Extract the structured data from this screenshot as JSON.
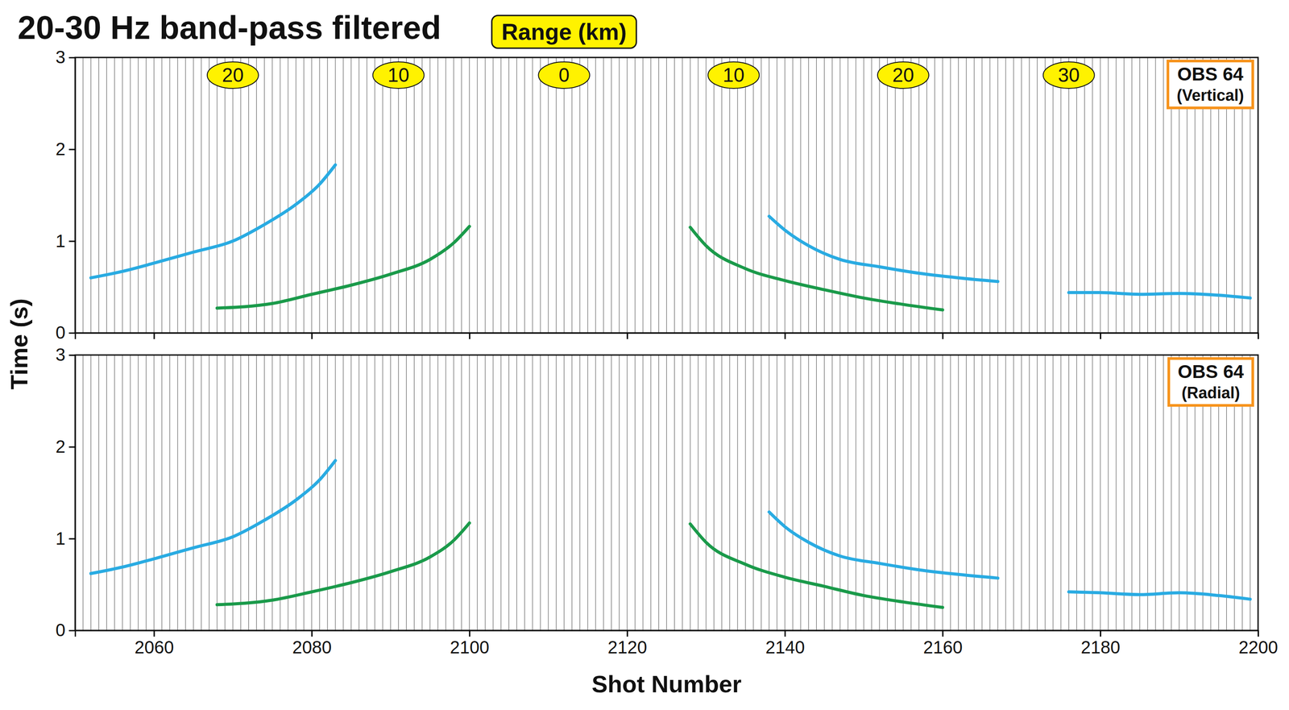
{
  "chart_data": [
    {
      "type": "line",
      "title": "20-30 Hz band-pass filtered",
      "range_label": "Range (km)",
      "y_label": "Time (s)",
      "panel_label": "OBS 64",
      "panel_sublabel": "(Vertical)",
      "xlim": [
        2050,
        2200
      ],
      "xticks": [
        2060,
        2080,
        2100,
        2120,
        2140,
        2160,
        2180,
        2200
      ],
      "ylim": [
        0,
        3
      ],
      "yticks": [
        0,
        1,
        2,
        3
      ],
      "tick_labels": "y",
      "range_ticks": [
        {
          "value": 2070,
          "label": "20"
        },
        {
          "value": 2091,
          "label": "10"
        },
        {
          "value": 2112,
          "label": "0"
        },
        {
          "value": 2133.5,
          "label": "10"
        },
        {
          "value": 2155,
          "label": "20"
        },
        {
          "value": 2176,
          "label": "30"
        }
      ],
      "series": [
        {
          "color": "#29abe2",
          "x": [
            2052,
            2056,
            2060,
            2065,
            2070,
            2074,
            2078,
            2081,
            2083
          ],
          "values": [
            0.6,
            0.67,
            0.76,
            0.88,
            1.0,
            1.18,
            1.4,
            1.62,
            1.83
          ]
        },
        {
          "color": "#1a9a4a",
          "x": [
            2068,
            2075,
            2080,
            2085,
            2090,
            2095,
            2098,
            2100
          ],
          "values": [
            0.27,
            0.32,
            0.42,
            0.52,
            0.64,
            0.8,
            0.98,
            1.16
          ]
        },
        {
          "color": "#1a9a4a",
          "x": [
            2128,
            2130,
            2135,
            2140,
            2145,
            2150,
            2155,
            2160
          ],
          "values": [
            1.15,
            0.95,
            0.7,
            0.57,
            0.47,
            0.38,
            0.31,
            0.25
          ]
        },
        {
          "color": "#29abe2",
          "x": [
            2138,
            2140,
            2143,
            2147,
            2152,
            2157,
            2162,
            2167
          ],
          "values": [
            1.27,
            1.12,
            0.95,
            0.8,
            0.72,
            0.65,
            0.6,
            0.56
          ]
        },
        {
          "color": "#29abe2",
          "x": [
            2176,
            2180,
            2185,
            2190,
            2195,
            2199
          ],
          "values": [
            0.44,
            0.44,
            0.42,
            0.43,
            0.41,
            0.38
          ]
        }
      ]
    },
    {
      "type": "line",
      "x_label": "Shot Number",
      "panel_label": "OBS 64",
      "panel_sublabel": "(Radial)",
      "xlim": [
        2050,
        2200
      ],
      "xticks": [
        2060,
        2080,
        2100,
        2120,
        2140,
        2160,
        2180,
        2200
      ],
      "ylim": [
        0,
        3
      ],
      "yticks": [
        0,
        1,
        2,
        3
      ],
      "series": [
        {
          "color": "#29abe2",
          "x": [
            2052,
            2056,
            2060,
            2065,
            2070,
            2074,
            2078,
            2081,
            2083
          ],
          "values": [
            0.62,
            0.69,
            0.78,
            0.9,
            1.02,
            1.2,
            1.42,
            1.64,
            1.85
          ]
        },
        {
          "color": "#1a9a4a",
          "x": [
            2068,
            2075,
            2080,
            2085,
            2090,
            2095,
            2098,
            2100
          ],
          "values": [
            0.28,
            0.33,
            0.42,
            0.52,
            0.64,
            0.8,
            0.98,
            1.17
          ]
        },
        {
          "color": "#1a9a4a",
          "x": [
            2128,
            2130,
            2135,
            2140,
            2145,
            2150,
            2155,
            2160
          ],
          "values": [
            1.16,
            0.96,
            0.72,
            0.58,
            0.48,
            0.38,
            0.31,
            0.25
          ]
        },
        {
          "color": "#29abe2",
          "x": [
            2138,
            2140,
            2143,
            2147,
            2152,
            2157,
            2162,
            2167
          ],
          "values": [
            1.29,
            1.13,
            0.96,
            0.81,
            0.73,
            0.66,
            0.61,
            0.57
          ]
        },
        {
          "color": "#29abe2",
          "x": [
            2176,
            2180,
            2185,
            2190,
            2195,
            2199
          ],
          "values": [
            0.42,
            0.41,
            0.39,
            0.41,
            0.38,
            0.34
          ]
        }
      ]
    }
  ]
}
